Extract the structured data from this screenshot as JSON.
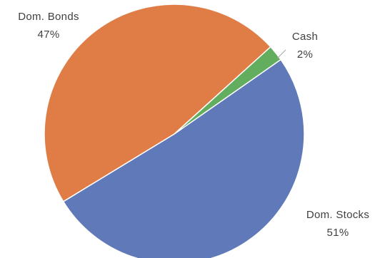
{
  "chart_data": {
    "type": "pie",
    "title": "",
    "slices": [
      {
        "label": "Dom. Stocks",
        "value": 51,
        "percent_label": "51%",
        "color": "#6079b8"
      },
      {
        "label": "Dom. Bonds",
        "value": 47,
        "percent_label": "47%",
        "color": "#e07d46"
      },
      {
        "label": "Cash",
        "value": 2,
        "percent_label": "2%",
        "color": "#62ad5e"
      }
    ],
    "legend": "none",
    "data_labels": "outside"
  }
}
